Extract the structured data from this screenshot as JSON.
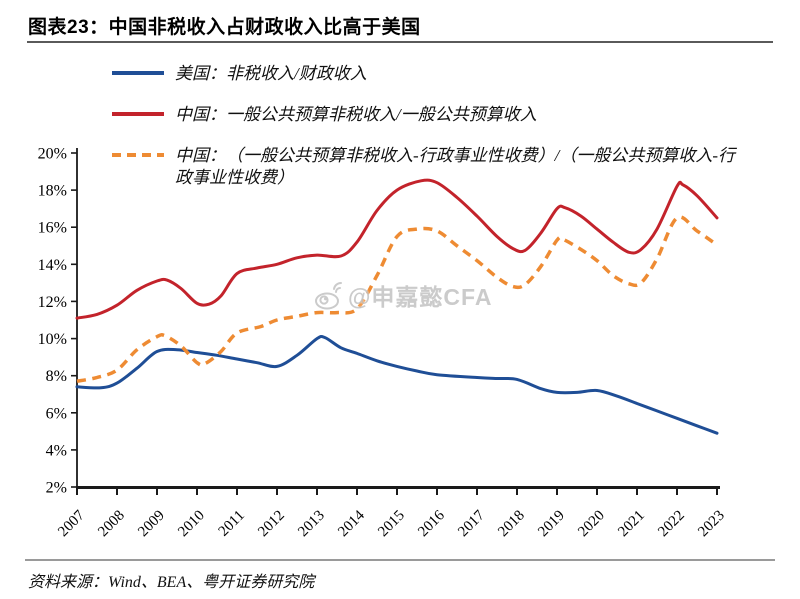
{
  "header": {
    "title": "图表23：中国非税收入占财政收入比高于美国"
  },
  "legend": {
    "items": [
      {
        "label": "美国：非税收入/财政收入",
        "color": "#1f4e96",
        "style": "solid"
      },
      {
        "label": "中国：一般公共预算非税收入/一般公共预算收入",
        "color": "#c3232b",
        "style": "solid"
      },
      {
        "label": "中国：（一般公共预算非税收入-行政事业性收费）/（一般公共预算收入-行政事业性收费）",
        "color": "#ee8b33",
        "style": "dashed"
      }
    ]
  },
  "watermark": {
    "icon": "weibo-icon",
    "text": "@申嘉懿CFA"
  },
  "footer": {
    "source": "资料来源：Wind、BEA、粤开证券研究院"
  },
  "chart_data": {
    "type": "line",
    "title": "图表23：中国非税收入占财政收入比高于美国",
    "xlabel": "",
    "ylabel": "",
    "xlim": [
      2007,
      2023
    ],
    "ylim": [
      2,
      20
    ],
    "ytick_step": 2,
    "ytick_suffix": "%",
    "xticks": [
      2007,
      2008,
      2009,
      2010,
      2011,
      2012,
      2013,
      2014,
      2015,
      2016,
      2017,
      2018,
      2019,
      2020,
      2021,
      2022,
      2023
    ],
    "grid": false,
    "legend_position": "top-left",
    "series": [
      {
        "name": "美国：非税收入/财政收入",
        "color": "#1f4e96",
        "dash": "solid",
        "width": 3,
        "points": [
          [
            2007,
            7.4
          ],
          [
            2007.6,
            7.35
          ],
          [
            2008,
            7.6
          ],
          [
            2008.5,
            8.4
          ],
          [
            2009,
            9.3
          ],
          [
            2009.5,
            9.4
          ],
          [
            2010,
            9.25
          ],
          [
            2010.5,
            9.1
          ],
          [
            2011,
            8.9
          ],
          [
            2011.5,
            8.7
          ],
          [
            2012,
            8.5
          ],
          [
            2012.5,
            9.1
          ],
          [
            2013,
            10.0
          ],
          [
            2013.2,
            10.05
          ],
          [
            2013.6,
            9.5
          ],
          [
            2014,
            9.2
          ],
          [
            2014.5,
            8.8
          ],
          [
            2015,
            8.5
          ],
          [
            2015.5,
            8.25
          ],
          [
            2016,
            8.05
          ],
          [
            2017,
            7.9
          ],
          [
            2017.5,
            7.85
          ],
          [
            2018,
            7.8
          ],
          [
            2018.6,
            7.3
          ],
          [
            2019,
            7.1
          ],
          [
            2019.5,
            7.1
          ],
          [
            2020,
            7.2
          ],
          [
            2020.5,
            6.9
          ],
          [
            2021,
            6.5
          ],
          [
            2021.5,
            6.1
          ],
          [
            2022,
            5.7
          ],
          [
            2022.5,
            5.3
          ],
          [
            2023,
            4.9
          ]
        ]
      },
      {
        "name": "中国：一般公共预算非税收入/一般公共预算收入",
        "color": "#c3232b",
        "dash": "solid",
        "width": 3,
        "points": [
          [
            2007,
            11.1
          ],
          [
            2007.5,
            11.3
          ],
          [
            2008,
            11.8
          ],
          [
            2008.5,
            12.6
          ],
          [
            2009,
            13.1
          ],
          [
            2009.25,
            13.15
          ],
          [
            2009.6,
            12.7
          ],
          [
            2010,
            11.9
          ],
          [
            2010.3,
            11.85
          ],
          [
            2010.6,
            12.3
          ],
          [
            2011,
            13.5
          ],
          [
            2011.5,
            13.8
          ],
          [
            2012,
            14.0
          ],
          [
            2012.5,
            14.35
          ],
          [
            2013,
            14.5
          ],
          [
            2013.6,
            14.45
          ],
          [
            2014,
            15.2
          ],
          [
            2014.5,
            16.9
          ],
          [
            2015,
            18.0
          ],
          [
            2015.6,
            18.5
          ],
          [
            2016,
            18.4
          ],
          [
            2016.5,
            17.6
          ],
          [
            2017,
            16.6
          ],
          [
            2017.5,
            15.5
          ],
          [
            2017.9,
            14.85
          ],
          [
            2018.2,
            14.75
          ],
          [
            2018.6,
            15.7
          ],
          [
            2019,
            17.0
          ],
          [
            2019.2,
            17.05
          ],
          [
            2019.6,
            16.6
          ],
          [
            2020,
            15.9
          ],
          [
            2020.4,
            15.2
          ],
          [
            2020.8,
            14.65
          ],
          [
            2021.1,
            14.8
          ],
          [
            2021.5,
            15.9
          ],
          [
            2022,
            18.2
          ],
          [
            2022.15,
            18.28
          ],
          [
            2022.5,
            17.7
          ],
          [
            2023,
            16.5
          ]
        ]
      },
      {
        "name": "中国：（一般公共预算非税收入-行政事业性收费）/（一般公共预算收入-行政事业性收费）",
        "color": "#ee8b33",
        "dash": "dashed",
        "width": 3.5,
        "points": [
          [
            2007,
            7.7
          ],
          [
            2007.5,
            7.9
          ],
          [
            2008,
            8.3
          ],
          [
            2008.5,
            9.4
          ],
          [
            2009,
            10.1
          ],
          [
            2009.2,
            10.15
          ],
          [
            2009.6,
            9.6
          ],
          [
            2010,
            8.7
          ],
          [
            2010.2,
            8.65
          ],
          [
            2010.6,
            9.3
          ],
          [
            2011,
            10.3
          ],
          [
            2011.6,
            10.65
          ],
          [
            2012,
            11.0
          ],
          [
            2012.5,
            11.2
          ],
          [
            2013,
            11.4
          ],
          [
            2013.5,
            11.4
          ],
          [
            2014,
            11.6
          ],
          [
            2014.5,
            13.4
          ],
          [
            2015,
            15.5
          ],
          [
            2015.5,
            15.9
          ],
          [
            2016,
            15.8
          ],
          [
            2016.5,
            15.0
          ],
          [
            2017,
            14.2
          ],
          [
            2017.5,
            13.3
          ],
          [
            2017.9,
            12.8
          ],
          [
            2018.2,
            12.9
          ],
          [
            2018.6,
            13.9
          ],
          [
            2019,
            15.3
          ],
          [
            2019.15,
            15.35
          ],
          [
            2019.6,
            14.8
          ],
          [
            2020,
            14.2
          ],
          [
            2020.4,
            13.4
          ],
          [
            2020.8,
            12.95
          ],
          [
            2021.1,
            13.0
          ],
          [
            2021.5,
            14.3
          ],
          [
            2022,
            16.5
          ],
          [
            2022.5,
            15.8
          ],
          [
            2023,
            15.05
          ]
        ]
      }
    ]
  }
}
